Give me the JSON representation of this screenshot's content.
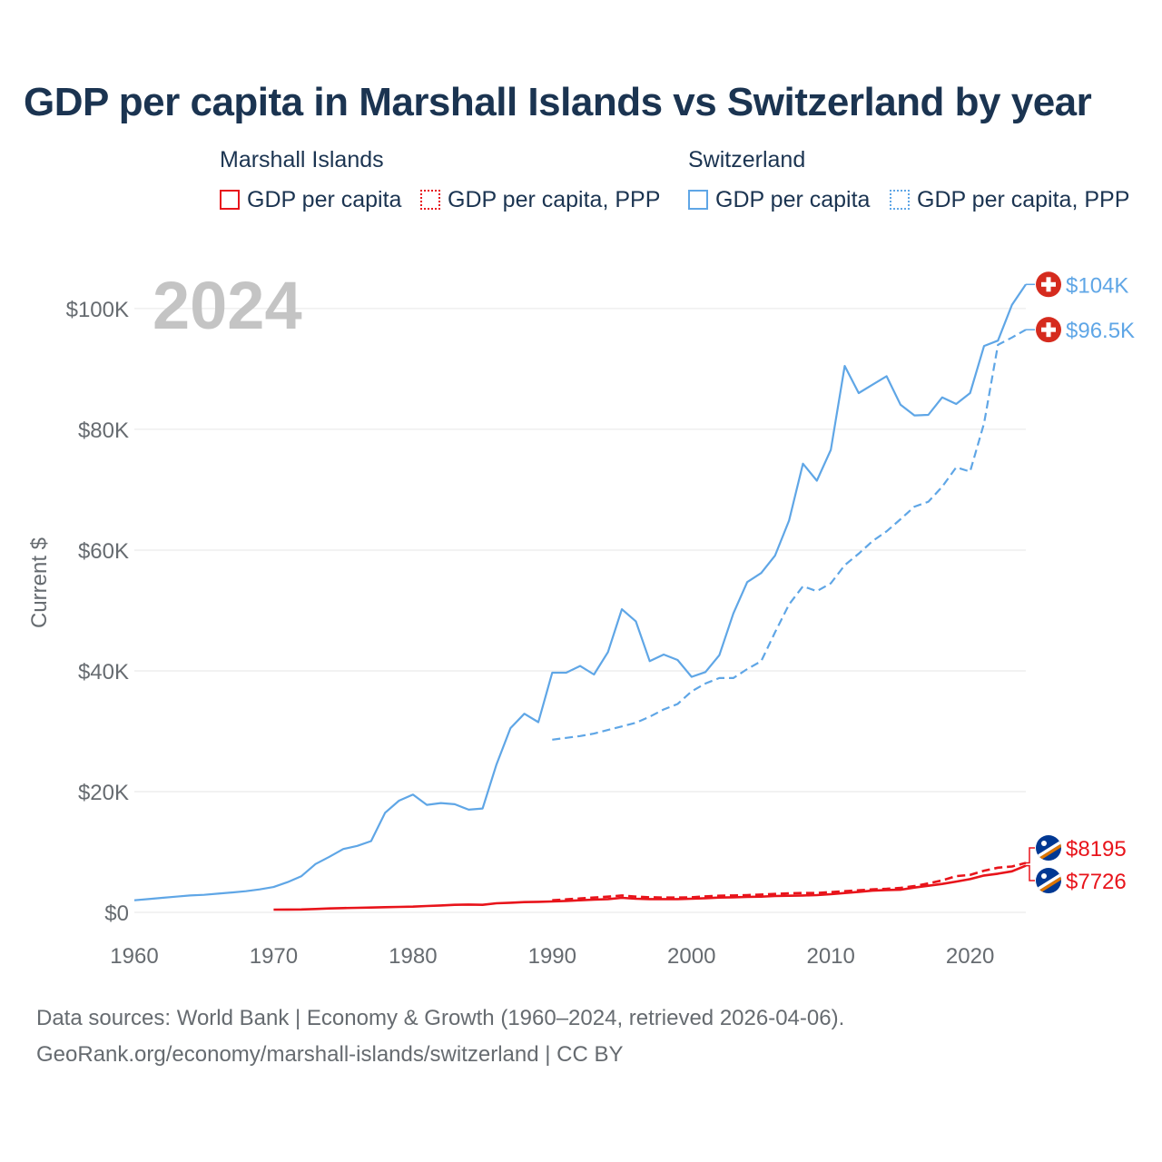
{
  "title": "GDP per capita in Marshall Islands vs Switzerland by year",
  "legend": {
    "groups": [
      {
        "name": "Marshall Islands",
        "color": "#e8141b",
        "items": [
          {
            "label": "GDP per capita",
            "style": "solid"
          },
          {
            "label": "GDP per capita, PPP",
            "style": "dotted"
          }
        ]
      },
      {
        "name": "Switzerland",
        "color": "#5fa6e6",
        "items": [
          {
            "label": "GDP per capita",
            "style": "solid"
          },
          {
            "label": "GDP per capita, PPP",
            "style": "dotted"
          }
        ]
      }
    ]
  },
  "year_overlay": "2024",
  "footer": {
    "line1": "Data sources: World Bank | Economy & Growth (1960–2024, retrieved 2026-04-06).",
    "line2": "GeoRank.org/economy/marshall-islands/switzerland | CC BY"
  },
  "colors": {
    "marshall": "#e8141b",
    "switzerland": "#5fa6e6",
    "grid": "#e6e6e6",
    "axis_text": "#666b70"
  },
  "chart_data": {
    "type": "line",
    "title": "GDP per capita in Marshall Islands vs Switzerland by year",
    "xlabel": "",
    "ylabel": "Current $",
    "xlim": [
      1960,
      2024
    ],
    "ylim": [
      0,
      106000
    ],
    "x_ticks": [
      1960,
      1970,
      1980,
      1990,
      2000,
      2010,
      2020
    ],
    "y_ticks": [
      0,
      20000,
      40000,
      60000,
      80000,
      100000
    ],
    "y_tick_labels": [
      "$0",
      "$20K",
      "$40K",
      "$60K",
      "$80K",
      "$100K"
    ],
    "series": [
      {
        "name": "Switzerland GDP per capita",
        "country": "Switzerland",
        "color": "#5fa6e6",
        "dash": "solid",
        "end_label": "$104K",
        "icon": "switzerland-flag-icon",
        "x": [
          1960,
          1961,
          1962,
          1963,
          1964,
          1965,
          1966,
          1967,
          1968,
          1969,
          1970,
          1971,
          1972,
          1973,
          1974,
          1975,
          1976,
          1977,
          1978,
          1979,
          1980,
          1981,
          1982,
          1983,
          1984,
          1985,
          1986,
          1987,
          1988,
          1989,
          1990,
          1991,
          1992,
          1993,
          1994,
          1995,
          1996,
          1997,
          1998,
          1999,
          2000,
          2001,
          2002,
          2003,
          2004,
          2005,
          2006,
          2007,
          2008,
          2009,
          2010,
          2011,
          2012,
          2013,
          2014,
          2015,
          2016,
          2017,
          2018,
          2019,
          2020,
          2021,
          2022,
          2023,
          2024
        ],
        "y": [
          2000,
          2200,
          2400,
          2600,
          2800,
          2900,
          3100,
          3300,
          3500,
          3800,
          4200,
          5000,
          6000,
          8000,
          9200,
          10500,
          11000,
          11800,
          16500,
          18500,
          19500,
          17800,
          18100,
          17900,
          17000,
          17200,
          24500,
          30500,
          32900,
          31500,
          39700,
          39700,
          40800,
          39400,
          43100,
          50200,
          48200,
          41600,
          42700,
          41800,
          39000,
          39800,
          42600,
          49500,
          54700,
          56200,
          59100,
          64900,
          74300,
          71500,
          76600,
          90500,
          86000,
          87400,
          88800,
          84100,
          82300,
          82400,
          85300,
          84200,
          86000,
          93800,
          94700,
          100600,
          104000
        ]
      },
      {
        "name": "Switzerland GDP per capita, PPP",
        "country": "Switzerland",
        "color": "#5fa6e6",
        "dash": "dashed",
        "end_label": "$96.5K",
        "icon": "switzerland-flag-icon",
        "x": [
          1990,
          1991,
          1992,
          1993,
          1994,
          1995,
          1996,
          1997,
          1998,
          1999,
          2000,
          2001,
          2002,
          2003,
          2004,
          2005,
          2006,
          2007,
          2008,
          2009,
          2010,
          2011,
          2012,
          2013,
          2014,
          2015,
          2016,
          2017,
          2018,
          2019,
          2020,
          2021,
          2022,
          2023,
          2024
        ],
        "y": [
          28600,
          28900,
          29200,
          29600,
          30200,
          30800,
          31400,
          32400,
          33600,
          34500,
          36600,
          37900,
          38800,
          38800,
          40300,
          41600,
          46400,
          51000,
          54000,
          53200,
          54500,
          57500,
          59400,
          61500,
          63100,
          65100,
          67200,
          68000,
          70500,
          73700,
          73000,
          81000,
          94000,
          95200,
          96500
        ]
      },
      {
        "name": "Marshall Islands GDP per capita",
        "country": "Marshall Islands",
        "color": "#e8141b",
        "dash": "solid",
        "end_label": "$7726",
        "icon": "marshall-islands-flag-icon",
        "x": [
          1970,
          1971,
          1972,
          1973,
          1974,
          1975,
          1976,
          1977,
          1978,
          1979,
          1980,
          1981,
          1982,
          1983,
          1984,
          1985,
          1986,
          1987,
          1988,
          1989,
          1990,
          1991,
          1992,
          1993,
          1994,
          1995,
          1996,
          1997,
          1998,
          1999,
          2000,
          2001,
          2002,
          2003,
          2004,
          2005,
          2006,
          2007,
          2008,
          2009,
          2010,
          2011,
          2012,
          2013,
          2014,
          2015,
          2016,
          2017,
          2018,
          2019,
          2020,
          2021,
          2022,
          2023,
          2024
        ],
        "y": [
          450,
          460,
          480,
          550,
          650,
          700,
          750,
          800,
          850,
          900,
          950,
          1050,
          1150,
          1250,
          1300,
          1250,
          1500,
          1600,
          1700,
          1750,
          1800,
          1900,
          2000,
          2100,
          2200,
          2400,
          2250,
          2200,
          2200,
          2200,
          2250,
          2350,
          2450,
          2500,
          2550,
          2600,
          2700,
          2750,
          2800,
          2850,
          3000,
          3200,
          3400,
          3600,
          3700,
          3750,
          4100,
          4400,
          4700,
          5100,
          5500,
          6100,
          6400,
          6800,
          7726
        ]
      },
      {
        "name": "Marshall Islands GDP per capita, PPP",
        "country": "Marshall Islands",
        "color": "#e8141b",
        "dash": "dashed",
        "end_label": "$8195",
        "icon": "marshall-islands-flag-icon",
        "x": [
          1990,
          1991,
          1992,
          1993,
          1994,
          1995,
          1996,
          1997,
          1998,
          1999,
          2000,
          2001,
          2002,
          2003,
          2004,
          2005,
          2006,
          2007,
          2008,
          2009,
          2010,
          2011,
          2012,
          2013,
          2014,
          2015,
          2016,
          2017,
          2018,
          2019,
          2020,
          2021,
          2022,
          2023,
          2024
        ],
        "y": [
          2000,
          2150,
          2300,
          2450,
          2600,
          2800,
          2600,
          2500,
          2450,
          2450,
          2500,
          2650,
          2750,
          2800,
          2850,
          2950,
          3050,
          3150,
          3200,
          3200,
          3350,
          3500,
          3650,
          3800,
          3900,
          4050,
          4350,
          4800,
          5300,
          6000,
          6200,
          6900,
          7400,
          7600,
          8195
        ]
      }
    ]
  }
}
